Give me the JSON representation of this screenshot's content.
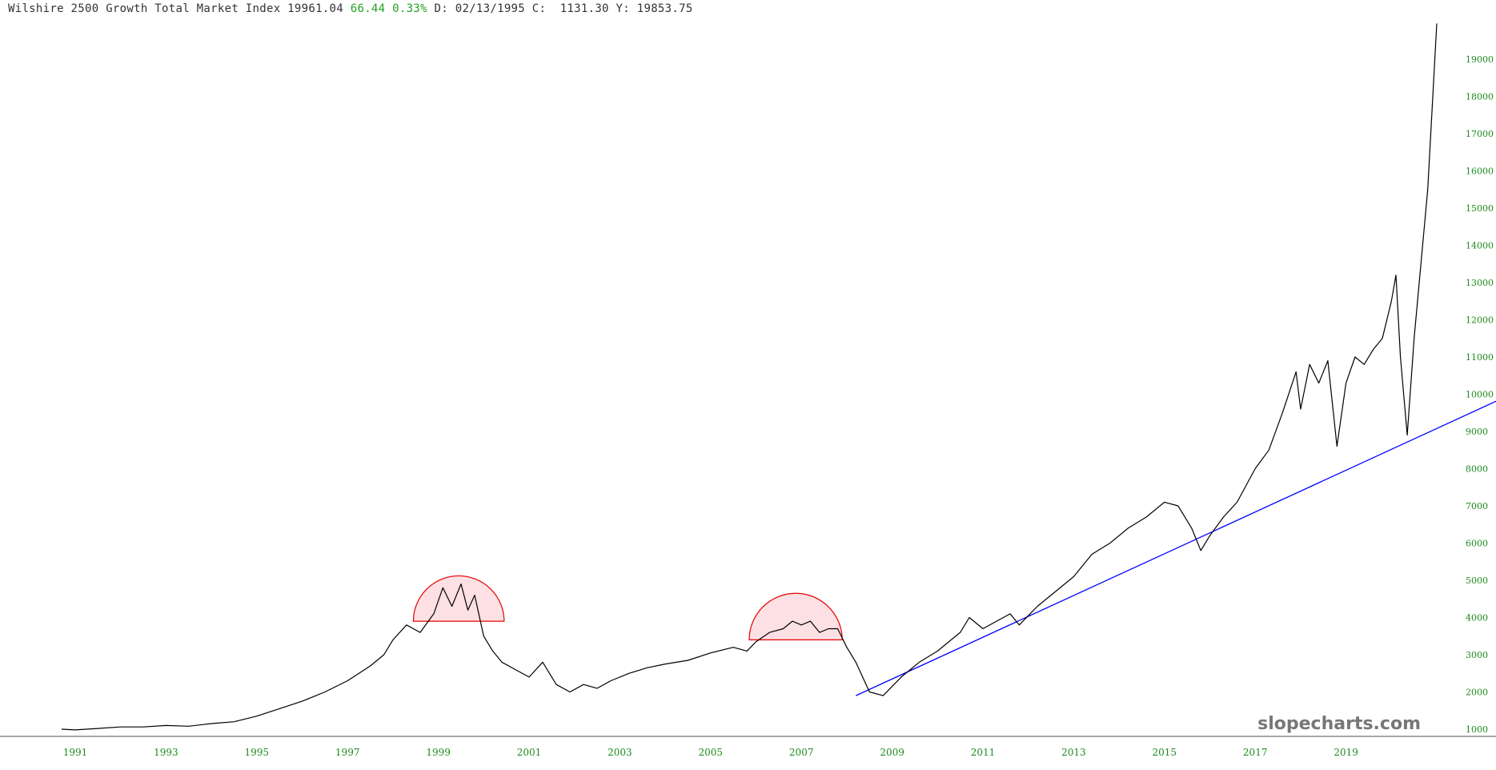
{
  "header": {
    "name": "Wilshire 2500 Growth Total Market Index",
    "last": "19961.04",
    "change": "66.44",
    "change_pct": "0.33%",
    "date_label": "D:",
    "date": "02/13/1995",
    "c_label": "C:",
    "c_value": "1131.30",
    "y_label": "Y:",
    "y_value": "19853.75"
  },
  "colors": {
    "price_line": "#000000",
    "trendline": "#0000ff",
    "dome_fill": "#fde0e3",
    "dome_stroke": "#e60000",
    "axis_text": "#1d8a1d",
    "change_up": "#23a023"
  },
  "watermark": "slopecharts.com",
  "chart_data": {
    "type": "line",
    "title": "Wilshire 2500 Growth Total Market Index",
    "x_range": [
      1990.7,
      2021.0
    ],
    "ylim": [
      1000,
      19961
    ],
    "grid": false,
    "y_ticks": [
      "1000",
      "2000",
      "3000",
      "4000",
      "5000",
      "6000",
      "7000",
      "8000",
      "9000",
      "10000",
      "11000",
      "12000",
      "13000",
      "14000",
      "15000",
      "16000",
      "17000",
      "18000",
      "19000"
    ],
    "x_ticks": [
      "1991",
      "1993",
      "1995",
      "1997",
      "1999",
      "2001",
      "2003",
      "2005",
      "2007",
      "2009",
      "2011",
      "2013",
      "2015",
      "2017",
      "2019"
    ],
    "series": [
      {
        "x": [
          1990.7,
          1991.0,
          1991.5,
          1992.0,
          1992.5,
          1993.0,
          1993.5,
          1994.0,
          1994.5,
          1995.0,
          1995.5,
          1996.0,
          1996.5,
          1997.0,
          1997.5,
          1997.8,
          1998.0,
          1998.3,
          1998.6,
          1998.9,
          1999.1,
          1999.3,
          1999.5,
          1999.65,
          1999.8,
          2000.0,
          2000.2,
          2000.4,
          2000.7,
          2001.0,
          2001.3,
          2001.6,
          2001.9,
          2002.2,
          2002.5,
          2002.8,
          2003.2,
          2003.6,
          2004.0,
          2004.5,
          2005.0,
          2005.5,
          2005.8,
          2006.0,
          2006.3,
          2006.6,
          2006.8,
          2007.0,
          2007.2,
          2007.4,
          2007.6,
          2007.8,
          2008.0,
          2008.2,
          2008.5,
          2008.8,
          2009.2,
          2009.6,
          2010.0,
          2010.3,
          2010.5,
          2010.7,
          2011.0,
          2011.3,
          2011.6,
          2011.8,
          2012.2,
          2012.6,
          2013.0,
          2013.4,
          2013.8,
          2014.2,
          2014.6,
          2015.0,
          2015.3,
          2015.6,
          2015.8,
          2016.0,
          2016.3,
          2016.6,
          2017.0,
          2017.3,
          2017.6,
          2017.9,
          2018.0,
          2018.2,
          2018.4,
          2018.6,
          2018.8,
          2019.0,
          2019.2,
          2019.4,
          2019.6,
          2019.8,
          2020.0,
          2020.1,
          2020.2,
          2020.35,
          2020.5,
          2020.8,
          2021.0
        ],
        "values": [
          1000,
          980,
          1020,
          1060,
          1060,
          1100,
          1080,
          1150,
          1200,
          1350,
          1550,
          1750,
          2000,
          2300,
          2700,
          3000,
          3400,
          3800,
          3600,
          4100,
          4800,
          4300,
          4900,
          4200,
          4600,
          3500,
          3100,
          2800,
          2600,
          2400,
          2800,
          2200,
          2000,
          2200,
          2100,
          2300,
          2500,
          2650,
          2750,
          2850,
          3050,
          3200,
          3100,
          3350,
          3600,
          3700,
          3900,
          3800,
          3900,
          3600,
          3700,
          3700,
          3200,
          2800,
          2000,
          1900,
          2400,
          2800,
          3100,
          3400,
          3600,
          4000,
          3700,
          3900,
          4100,
          3800,
          4300,
          4700,
          5100,
          5700,
          6000,
          6400,
          6700,
          7100,
          7000,
          6400,
          5800,
          6200,
          6700,
          7100,
          8000,
          8500,
          9500,
          10600,
          9600,
          10800,
          10300,
          10900,
          8600,
          10300,
          11000,
          10800,
          11200,
          11500,
          12500,
          13200,
          11000,
          8900,
          11500,
          15500,
          19961
        ]
      }
    ],
    "annotations": [
      {
        "type": "dome",
        "x0": 1998.45,
        "x1": 2000.45,
        "base_y": 3900
      },
      {
        "type": "dome",
        "x0": 2005.85,
        "x1": 2007.9,
        "base_y": 3400
      },
      {
        "type": "trendline",
        "x0": 2008.2,
        "y0": 1900,
        "x1": 2023.0,
        "y1": 10200
      }
    ]
  }
}
